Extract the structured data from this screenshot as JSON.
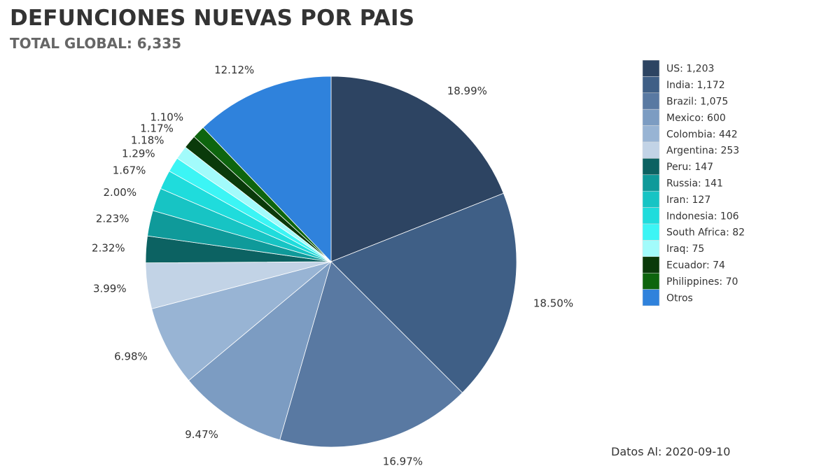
{
  "title": "DEFUNCIONES NUEVAS POR PAIS",
  "subtitle": "TOTAL GLOBAL: 6,335",
  "footer": "Datos Al: 2020-09-10",
  "chart_data": {
    "type": "pie",
    "title": "DEFUNCIONES NUEVAS POR PAIS",
    "subtitle": "TOTAL GLOBAL: 6,335",
    "total": 6335,
    "legend_position": "right",
    "slices": [
      {
        "label": "US",
        "value": 1203,
        "display_value": "1,203",
        "percent": "18.99%",
        "color": "#2d4462"
      },
      {
        "label": "India",
        "value": 1172,
        "display_value": "1,172",
        "percent": "18.50%",
        "color": "#3f5f86"
      },
      {
        "label": "Brazil",
        "value": 1075,
        "display_value": "1,075",
        "percent": "16.97%",
        "color": "#5979a2"
      },
      {
        "label": "Mexico",
        "value": 600,
        "display_value": "600",
        "percent": "9.47%",
        "color": "#7c9cc2"
      },
      {
        "label": "Colombia",
        "value": 442,
        "display_value": "442",
        "percent": "6.98%",
        "color": "#98b4d4"
      },
      {
        "label": "Argentina",
        "value": 253,
        "display_value": "253",
        "percent": "3.99%",
        "color": "#c2d3e6"
      },
      {
        "label": "Peru",
        "value": 147,
        "display_value": "147",
        "percent": "2.32%",
        "color": "#0c6262"
      },
      {
        "label": "Russia",
        "value": 141,
        "display_value": "141",
        "percent": "2.23%",
        "color": "#0f9a9a"
      },
      {
        "label": "Iran",
        "value": 127,
        "display_value": "127",
        "percent": "2.00%",
        "color": "#17c4c4"
      },
      {
        "label": "Indonesia",
        "value": 106,
        "display_value": "106",
        "percent": "1.67%",
        "color": "#1fdcdc"
      },
      {
        "label": "South Africa",
        "value": 82,
        "display_value": "82",
        "percent": "1.29%",
        "color": "#3cf5f5"
      },
      {
        "label": "Iraq",
        "value": 75,
        "display_value": "75",
        "percent": "1.18%",
        "color": "#a2fbfb"
      },
      {
        "label": "Ecuador",
        "value": 74,
        "display_value": "74",
        "percent": "1.17%",
        "color": "#0a3a0a"
      },
      {
        "label": "Philippines",
        "value": 70,
        "display_value": "70",
        "percent": "1.10%",
        "color": "#0e650e"
      },
      {
        "label": "Otros",
        "value": 768,
        "display_value": "",
        "percent": "12.12%",
        "color": "#2f82dc"
      }
    ]
  }
}
